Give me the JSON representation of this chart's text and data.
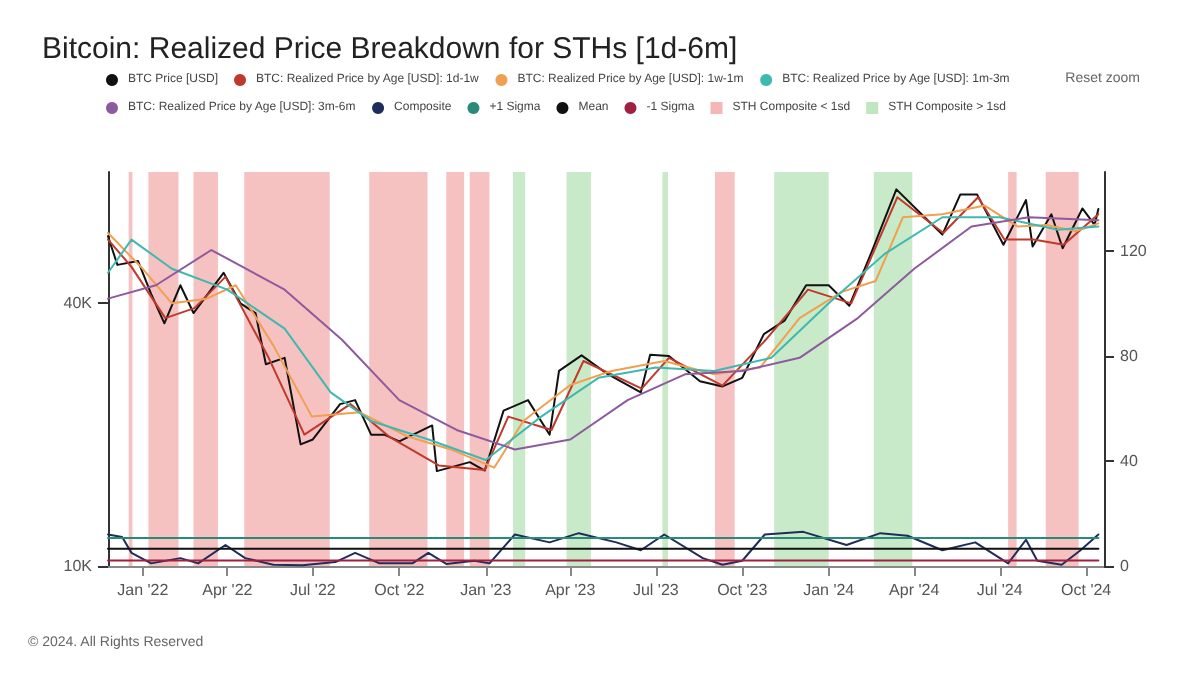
{
  "chart_data": {
    "type": "line",
    "title": "Bitcoin: Realized Price Breakdown for STHs [1d-6m]",
    "annotations": [
      "© 2024. All Rights Reserved",
      "Reset zoom"
    ],
    "log": "y",
    "legend": "top",
    "marker": "none",
    "line_style": "solid",
    "xlim": [
      "2021-11-25",
      "2024-10-20"
    ],
    "xticks": [
      {
        "value": "2022-01-01",
        "label": "Jan '22"
      },
      {
        "value": "2022-04-01",
        "label": "Apr '22"
      },
      {
        "value": "2022-07-01",
        "label": "Jul '22"
      },
      {
        "value": "2022-10-01",
        "label": "Oct '22"
      },
      {
        "value": "2023-01-01",
        "label": "Jan '23"
      },
      {
        "value": "2023-04-01",
        "label": "Apr '23"
      },
      {
        "value": "2023-07-01",
        "label": "Jul '23"
      },
      {
        "value": "2023-10-01",
        "label": "Oct '23"
      },
      {
        "value": "2024-01-01",
        "label": "Jan '24"
      },
      {
        "value": "2024-04-01",
        "label": "Apr '24"
      },
      {
        "value": "2024-07-01",
        "label": "Jul '24"
      },
      {
        "value": "2024-10-01",
        "label": "Oct '24"
      }
    ],
    "ylim": [
      10000,
      80000
    ],
    "yticks": [
      {
        "value": 10000,
        "label": "10K"
      },
      {
        "value": 40000,
        "label": "40K"
      }
    ],
    "y2lim": [
      0,
      150
    ],
    "y2ticks": [
      0,
      40,
      80,
      120
    ],
    "series": [
      {
        "name": "BTC Price [USD]",
        "color": "#111111",
        "x": [
          "2021-11-25",
          "2021-12-05",
          "2021-12-27",
          "2022-01-10",
          "2022-01-24",
          "2022-02-10",
          "2022-02-24",
          "2022-03-28",
          "2022-04-15",
          "2022-05-01",
          "2022-05-12",
          "2022-06-01",
          "2022-06-18",
          "2022-07-01",
          "2022-07-30",
          "2022-08-15",
          "2022-09-01",
          "2022-09-15",
          "2022-10-01",
          "2022-11-05",
          "2022-11-10",
          "2022-12-15",
          "2022-12-31",
          "2023-01-20",
          "2023-02-15",
          "2023-03-10",
          "2023-03-20",
          "2023-04-13",
          "2023-05-10",
          "2023-06-15",
          "2023-06-25",
          "2023-07-15",
          "2023-08-17",
          "2023-09-10",
          "2023-10-01",
          "2023-10-24",
          "2023-11-15",
          "2023-12-08",
          "2024-01-01",
          "2024-01-23",
          "2024-02-15",
          "2024-03-13",
          "2024-04-17",
          "2024-05-01",
          "2024-05-20",
          "2024-06-07",
          "2024-07-05",
          "2024-07-29",
          "2024-08-05",
          "2024-08-25",
          "2024-09-06",
          "2024-09-27",
          "2024-10-10",
          "2024-10-14"
        ],
        "values": [
          57000,
          49000,
          50000,
          42000,
          36000,
          44000,
          38000,
          47000,
          40000,
          38000,
          29000,
          30000,
          19000,
          19500,
          23500,
          24000,
          20000,
          20000,
          19300,
          21000,
          16500,
          17300,
          16550,
          22700,
          24000,
          20000,
          28000,
          30400,
          27600,
          25000,
          30500,
          30300,
          26500,
          25800,
          27000,
          34000,
          36500,
          44000,
          44000,
          39500,
          52000,
          73000,
          61500,
          57500,
          71000,
          71000,
          54500,
          69000,
          54000,
          64000,
          53500,
          66000,
          60500,
          65800
        ]
      },
      {
        "name": "BTC: Realized Price by Age [USD]: 1d-1w",
        "color": "#c0392b",
        "x": [
          "2021-11-25",
          "2021-12-20",
          "2022-01-25",
          "2022-02-25",
          "2022-03-30",
          "2022-05-15",
          "2022-06-22",
          "2022-08-10",
          "2022-09-20",
          "2022-11-12",
          "2022-12-31",
          "2023-01-25",
          "2023-03-12",
          "2023-04-15",
          "2023-06-16",
          "2023-07-15",
          "2023-09-10",
          "2023-10-26",
          "2023-12-10",
          "2024-01-25",
          "2024-03-14",
          "2024-05-02",
          "2024-06-08",
          "2024-07-06",
          "2024-08-06",
          "2024-09-07",
          "2024-10-14"
        ],
        "values": [
          56000,
          48500,
          37000,
          39000,
          46000,
          30000,
          20000,
          23500,
          19800,
          17000,
          16600,
          22000,
          20500,
          29500,
          25500,
          30000,
          25900,
          33000,
          43000,
          40000,
          70000,
          58000,
          70000,
          56000,
          56000,
          54500,
          64000
        ]
      },
      {
        "name": "BTC: Realized Price by Age [USD]: 1w-1m",
        "color": "#f0a050",
        "x": [
          "2021-11-25",
          "2022-01-01",
          "2022-02-01",
          "2022-03-10",
          "2022-04-10",
          "2022-05-20",
          "2022-06-30",
          "2022-08-20",
          "2022-10-10",
          "2022-11-25",
          "2023-01-10",
          "2023-02-10",
          "2023-04-01",
          "2023-05-15",
          "2023-07-10",
          "2023-09-01",
          "2023-10-20",
          "2023-12-01",
          "2024-01-15",
          "2024-02-20",
          "2024-03-20",
          "2024-05-01",
          "2024-06-15",
          "2024-07-20",
          "2024-08-20",
          "2024-09-20",
          "2024-10-14"
        ],
        "values": [
          58000,
          48000,
          40000,
          41000,
          44000,
          32000,
          22000,
          22500,
          19800,
          18500,
          16800,
          21500,
          26000,
          28000,
          29500,
          27500,
          28500,
          37000,
          42500,
          45000,
          63000,
          64000,
          67000,
          60000,
          60500,
          58500,
          61000
        ]
      },
      {
        "name": "BTC: Realized Price by Age [USD]: 1m-3m",
        "color": "#3fb8b0",
        "x": [
          "2021-11-25",
          "2021-12-20",
          "2022-02-01",
          "2022-04-01",
          "2022-06-01",
          "2022-07-20",
          "2022-09-01",
          "2022-11-01",
          "2023-01-01",
          "2023-03-01",
          "2023-05-01",
          "2023-07-01",
          "2023-09-01",
          "2023-11-01",
          "2024-01-01",
          "2024-03-01",
          "2024-05-01",
          "2024-07-01",
          "2024-09-01",
          "2024-10-14"
        ],
        "values": [
          47000,
          56000,
          48000,
          43000,
          35000,
          25000,
          21500,
          19500,
          17500,
          22000,
          27000,
          28500,
          28000,
          30000,
          40000,
          52000,
          63000,
          63000,
          59000,
          60000
        ]
      },
      {
        "name": "BTC: Realized Price by Age [USD]: 3m-6m",
        "color": "#8e5a9e",
        "x": [
          "2021-11-25",
          "2022-01-15",
          "2022-03-15",
          "2022-06-01",
          "2022-08-01",
          "2022-10-01",
          "2022-12-01",
          "2023-02-01",
          "2023-04-01",
          "2023-06-01",
          "2023-08-01",
          "2023-10-01",
          "2023-12-01",
          "2024-02-01",
          "2024-04-01",
          "2024-06-01",
          "2024-08-01",
          "2024-10-14"
        ],
        "values": [
          41000,
          44000,
          53000,
          43000,
          33000,
          24000,
          20500,
          18500,
          19500,
          24000,
          27500,
          28000,
          30000,
          37000,
          48000,
          60000,
          63000,
          62000
        ]
      },
      {
        "name": "Composite",
        "color": "#1f2d5a",
        "axis": "y2",
        "x": [
          "2021-11-25",
          "2021-12-10",
          "2021-12-20",
          "2022-01-10",
          "2022-02-10",
          "2022-03-01",
          "2022-03-30",
          "2022-04-20",
          "2022-05-20",
          "2022-06-20",
          "2022-07-25",
          "2022-08-15",
          "2022-09-10",
          "2022-10-15",
          "2022-11-01",
          "2022-11-20",
          "2022-12-20",
          "2023-01-05",
          "2023-02-01",
          "2023-03-10",
          "2023-04-10",
          "2023-05-20",
          "2023-06-15",
          "2023-07-10",
          "2023-08-20",
          "2023-09-10",
          "2023-10-01",
          "2023-10-25",
          "2023-12-05",
          "2024-01-20",
          "2024-02-25",
          "2024-03-25",
          "2024-05-01",
          "2024-06-05",
          "2024-07-10",
          "2024-07-29",
          "2024-08-10",
          "2024-09-05",
          "2024-09-25",
          "2024-10-14"
        ],
        "values": [
          12,
          11,
          5,
          1,
          3,
          1,
          8,
          3,
          0.5,
          0.3,
          1.5,
          5,
          1,
          1,
          5,
          0.8,
          2,
          1,
          12,
          9,
          12.5,
          9,
          6,
          12,
          3,
          0.5,
          2,
          12,
          13,
          8,
          12.5,
          11.5,
          6,
          9,
          1,
          10,
          2,
          0.5,
          6,
          12
        ]
      },
      {
        "name": "+1 Sigma",
        "color": "#2a8a7a",
        "axis": "y2",
        "x": [
          "2021-11-25",
          "2024-10-14"
        ],
        "values": [
          10.7,
          10.7
        ]
      },
      {
        "name": "Mean",
        "color": "#111111",
        "axis": "y2",
        "x": [
          "2021-11-25",
          "2024-10-14"
        ],
        "values": [
          6.6,
          6.6
        ]
      },
      {
        "name": "-1 Sigma",
        "color": "#a02040",
        "axis": "y2",
        "x": [
          "2021-11-25",
          "2024-10-14"
        ],
        "values": [
          2.1,
          2.1
        ]
      }
    ],
    "bands": [
      {
        "axis": "x",
        "from": "2021-12-17",
        "to": "2021-12-21",
        "label": "STH Composite < 1sd",
        "color": "#f4b6b6"
      },
      {
        "axis": "x",
        "from": "2022-01-07",
        "to": "2022-02-08",
        "color": "#f4b6b6"
      },
      {
        "axis": "x",
        "from": "2022-02-24",
        "to": "2022-03-22",
        "color": "#f4b6b6"
      },
      {
        "axis": "x",
        "from": "2022-04-19",
        "to": "2022-07-19",
        "color": "#f4b6b6"
      },
      {
        "axis": "x",
        "from": "2022-08-30",
        "to": "2022-10-31",
        "color": "#f4b6b6"
      },
      {
        "axis": "x",
        "from": "2022-11-20",
        "to": "2022-12-09",
        "color": "#f4b6b6"
      },
      {
        "axis": "x",
        "from": "2022-12-15",
        "to": "2023-01-05",
        "color": "#f4b6b6"
      },
      {
        "axis": "x",
        "from": "2023-09-02",
        "to": "2023-09-23",
        "color": "#f4b6b6"
      },
      {
        "axis": "x",
        "from": "2024-07-10",
        "to": "2024-07-19",
        "color": "#f4b6b6"
      },
      {
        "axis": "x",
        "from": "2024-08-19",
        "to": "2024-09-23",
        "color": "#f4b6b6"
      },
      {
        "axis": "x",
        "from": "2023-01-30",
        "to": "2023-02-12",
        "label": "STH Composite > 1sd",
        "color": "#bfe6c0"
      },
      {
        "axis": "x",
        "from": "2023-03-28",
        "to": "2023-04-23",
        "color": "#bfe6c0"
      },
      {
        "axis": "x",
        "from": "2023-07-08",
        "to": "2023-07-14",
        "color": "#bfe6c0"
      },
      {
        "axis": "x",
        "from": "2023-11-04",
        "to": "2024-01-01",
        "color": "#bfe6c0"
      },
      {
        "axis": "x",
        "from": "2024-02-18",
        "to": "2024-03-30",
        "color": "#bfe6c0"
      }
    ]
  }
}
